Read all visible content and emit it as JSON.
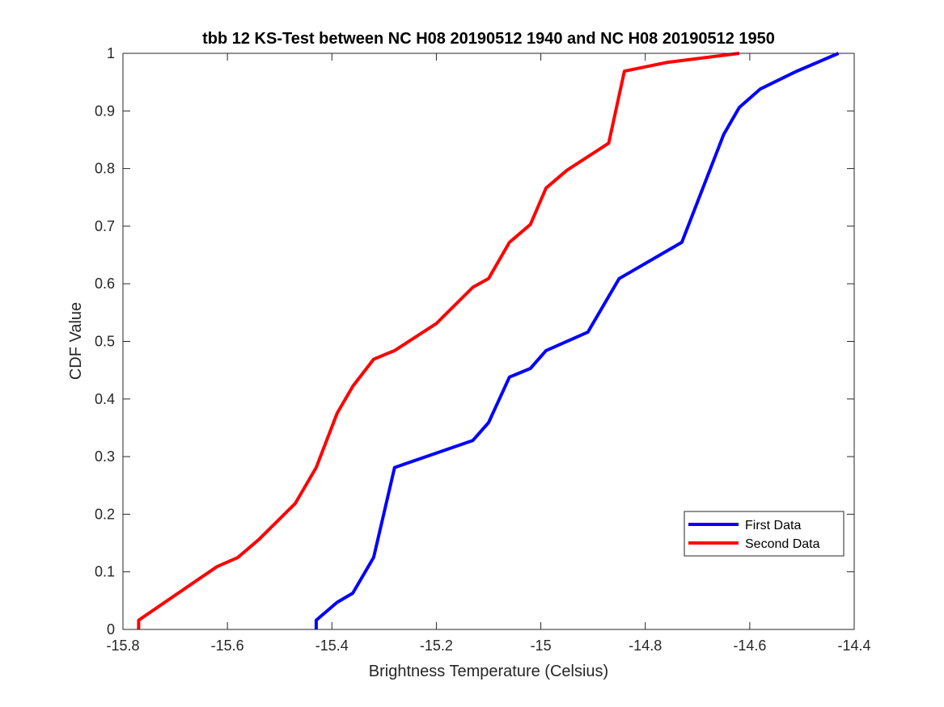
{
  "chart_data": {
    "type": "line",
    "title": "tbb 12 KS-Test between NC H08 20190512 1940 and NC H08 20190512 1950",
    "xlabel": "Brightness Temperature (Celsius)",
    "ylabel": "CDF Value",
    "xlim": [
      -15.8,
      -14.4
    ],
    "ylim": [
      0,
      1
    ],
    "xticks": [
      -15.8,
      -15.6,
      -15.4,
      -15.2,
      -15,
      -14.8,
      -14.6,
      -14.4
    ],
    "xtick_labels": [
      "-15.8",
      "-15.6",
      "-15.4",
      "-15.2",
      "-15",
      "-14.8",
      "-14.6",
      "-14.4"
    ],
    "yticks": [
      0,
      0.1,
      0.2,
      0.3,
      0.4,
      0.5,
      0.6,
      0.7,
      0.8,
      0.9,
      1
    ],
    "ytick_labels": [
      "0",
      "0.1",
      "0.2",
      "0.3",
      "0.4",
      "0.5",
      "0.6",
      "0.7",
      "0.8",
      "0.9",
      "1"
    ],
    "grid": false,
    "legend_position": "bottom-right",
    "series": [
      {
        "name": "First Data",
        "color": "#0000ff",
        "x": [
          -15.43,
          -15.43,
          -15.39,
          -15.36,
          -15.32,
          -15.28,
          -15.13,
          -15.1,
          -15.06,
          -15.02,
          -14.99,
          -14.91,
          -14.87,
          -14.85,
          -14.73,
          -14.65,
          -14.62,
          -14.58,
          -14.51,
          -14.43
        ],
        "y": [
          0,
          0.016,
          0.047,
          0.063,
          0.125,
          0.281,
          0.328,
          0.359,
          0.438,
          0.453,
          0.484,
          0.516,
          0.578,
          0.609,
          0.672,
          0.859,
          0.906,
          0.938,
          0.969,
          1
        ]
      },
      {
        "name": "Second Data",
        "color": "#ff0000",
        "x": [
          -15.77,
          -15.77,
          -15.62,
          -15.58,
          -15.54,
          -15.47,
          -15.43,
          -15.39,
          -15.36,
          -15.32,
          -15.28,
          -15.2,
          -15.13,
          -15.1,
          -15.06,
          -15.02,
          -14.99,
          -14.95,
          -14.87,
          -14.84,
          -14.76,
          -14.62
        ],
        "y": [
          0,
          0.016,
          0.109,
          0.125,
          0.156,
          0.219,
          0.281,
          0.375,
          0.422,
          0.469,
          0.484,
          0.531,
          0.594,
          0.609,
          0.672,
          0.703,
          0.766,
          0.797,
          0.844,
          0.969,
          0.984,
          1
        ]
      }
    ]
  }
}
